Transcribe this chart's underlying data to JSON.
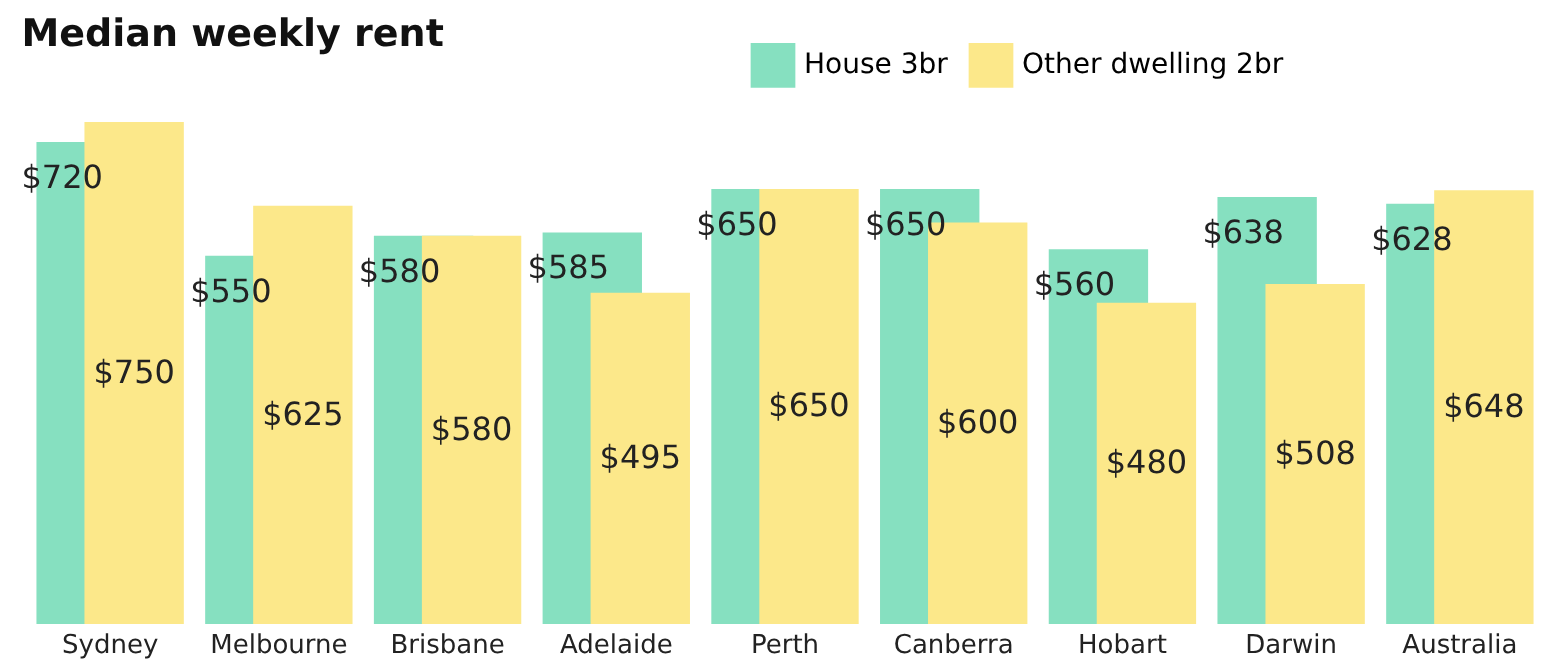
{
  "chart_data": {
    "type": "bar",
    "title": "Median weekly rent",
    "categories": [
      "Sydney",
      "Melbourne",
      "Brisbane",
      "Adelaide",
      "Perth",
      "Canberra",
      "Hobart",
      "Darwin",
      "Australia"
    ],
    "series": [
      {
        "name": "House 3br",
        "color": "#86e0c0",
        "values": [
          720,
          550,
          580,
          585,
          650,
          650,
          560,
          638,
          628
        ],
        "value_labels": [
          "$720",
          "$550",
          "$580",
          "$585",
          "$650",
          "$650",
          "$560",
          "$638",
          "$628"
        ]
      },
      {
        "name": "Other dwelling 2br",
        "color": "#fce88a",
        "values": [
          750,
          625,
          580,
          495,
          650,
          600,
          480,
          508,
          648
        ],
        "value_labels": [
          "$750",
          "$625",
          "$580",
          "$495",
          "$650",
          "$600",
          "$480",
          "$508",
          "$648"
        ]
      }
    ],
    "legend": "top right",
    "grid": false,
    "tick_labels": "x"
  }
}
